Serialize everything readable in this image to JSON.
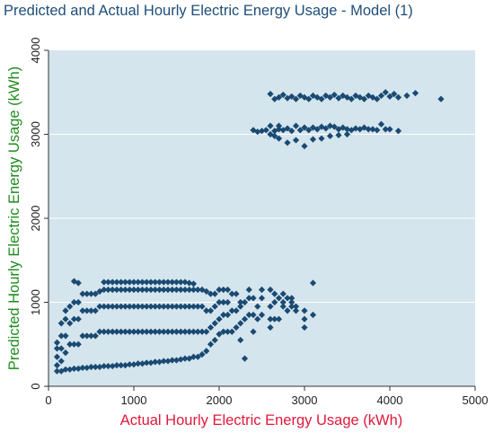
{
  "chart_data": {
    "type": "scatter",
    "title": "Predicted and Actual Hourly Electric Energy Usage - Model (1)",
    "xlabel": "Actual Hourly Electric Energy Usage (kWh)",
    "ylabel": "Predicted Hourly Electric Energy Usage (kWh)",
    "xlim": [
      0,
      5000
    ],
    "ylim": [
      0,
      4000
    ],
    "xticks": [
      0,
      1000,
      2000,
      3000,
      4000,
      5000
    ],
    "yticks": [
      0,
      1000,
      2000,
      3000,
      4000
    ],
    "grid": true,
    "legend": "none",
    "colors": {
      "title": "#1f4e79",
      "xlabel": "#e0183c",
      "ylabel": "#1e8c1e",
      "points": "#1a4a72",
      "plot_background": "#d5e5ee",
      "gridline": "#ffffff"
    },
    "series": [
      {
        "points": [
          [
            100,
            180
          ],
          [
            100,
            250
          ],
          [
            100,
            350
          ],
          [
            100,
            450
          ],
          [
            100,
            520
          ],
          [
            150,
            180
          ],
          [
            150,
            300
          ],
          [
            150,
            450
          ],
          [
            150,
            600
          ],
          [
            150,
            750
          ],
          [
            200,
            200
          ],
          [
            200,
            400
          ],
          [
            200,
            600
          ],
          [
            200,
            800
          ],
          [
            200,
            900
          ],
          [
            250,
            200
          ],
          [
            250,
            500
          ],
          [
            250,
            750
          ],
          [
            250,
            950
          ],
          [
            300,
            210
          ],
          [
            300,
            500
          ],
          [
            300,
            800
          ],
          [
            300,
            1000
          ],
          [
            300,
            1250
          ],
          [
            350,
            210
          ],
          [
            350,
            500
          ],
          [
            350,
            800
          ],
          [
            350,
            1000
          ],
          [
            350,
            1230
          ],
          [
            400,
            220
          ],
          [
            400,
            600
          ],
          [
            400,
            900
          ],
          [
            400,
            1100
          ],
          [
            450,
            220
          ],
          [
            450,
            600
          ],
          [
            450,
            900
          ],
          [
            450,
            1100
          ],
          [
            500,
            230
          ],
          [
            500,
            600
          ],
          [
            500,
            900
          ],
          [
            500,
            1100
          ],
          [
            550,
            230
          ],
          [
            550,
            600
          ],
          [
            550,
            900
          ],
          [
            550,
            1100
          ],
          [
            600,
            230
          ],
          [
            600,
            650
          ],
          [
            600,
            950
          ],
          [
            600,
            1130
          ],
          [
            650,
            240
          ],
          [
            650,
            650
          ],
          [
            650,
            950
          ],
          [
            650,
            1150
          ],
          [
            650,
            1240
          ],
          [
            700,
            240
          ],
          [
            700,
            650
          ],
          [
            700,
            950
          ],
          [
            700,
            1150
          ],
          [
            700,
            1240
          ],
          [
            750,
            240
          ],
          [
            750,
            650
          ],
          [
            750,
            950
          ],
          [
            750,
            1150
          ],
          [
            750,
            1240
          ],
          [
            800,
            250
          ],
          [
            800,
            650
          ],
          [
            800,
            950
          ],
          [
            800,
            1150
          ],
          [
            800,
            1240
          ],
          [
            850,
            250
          ],
          [
            850,
            650
          ],
          [
            850,
            950
          ],
          [
            850,
            1150
          ],
          [
            850,
            1240
          ],
          [
            900,
            250
          ],
          [
            900,
            650
          ],
          [
            900,
            950
          ],
          [
            900,
            1150
          ],
          [
            900,
            1240
          ],
          [
            950,
            260
          ],
          [
            950,
            650
          ],
          [
            950,
            950
          ],
          [
            950,
            1150
          ],
          [
            950,
            1240
          ],
          [
            1000,
            260
          ],
          [
            1000,
            650
          ],
          [
            1000,
            950
          ],
          [
            1000,
            1150
          ],
          [
            1000,
            1240
          ],
          [
            1050,
            270
          ],
          [
            1050,
            650
          ],
          [
            1050,
            950
          ],
          [
            1050,
            1150
          ],
          [
            1050,
            1240
          ],
          [
            1100,
            270
          ],
          [
            1100,
            650
          ],
          [
            1100,
            950
          ],
          [
            1100,
            1150
          ],
          [
            1100,
            1240
          ],
          [
            1150,
            280
          ],
          [
            1150,
            650
          ],
          [
            1150,
            950
          ],
          [
            1150,
            1150
          ],
          [
            1150,
            1240
          ],
          [
            1200,
            280
          ],
          [
            1200,
            650
          ],
          [
            1200,
            950
          ],
          [
            1200,
            1150
          ],
          [
            1200,
            1240
          ],
          [
            1250,
            290
          ],
          [
            1250,
            650
          ],
          [
            1250,
            950
          ],
          [
            1250,
            1150
          ],
          [
            1250,
            1240
          ],
          [
            1300,
            290
          ],
          [
            1300,
            650
          ],
          [
            1300,
            950
          ],
          [
            1300,
            1150
          ],
          [
            1300,
            1240
          ],
          [
            1350,
            300
          ],
          [
            1350,
            650
          ],
          [
            1350,
            950
          ],
          [
            1350,
            1150
          ],
          [
            1350,
            1240
          ],
          [
            1400,
            300
          ],
          [
            1400,
            650
          ],
          [
            1400,
            950
          ],
          [
            1400,
            1150
          ],
          [
            1400,
            1240
          ],
          [
            1450,
            310
          ],
          [
            1450,
            650
          ],
          [
            1450,
            950
          ],
          [
            1450,
            1150
          ],
          [
            1450,
            1240
          ],
          [
            1500,
            310
          ],
          [
            1500,
            650
          ],
          [
            1500,
            950
          ],
          [
            1500,
            1150
          ],
          [
            1500,
            1240
          ],
          [
            1550,
            320
          ],
          [
            1550,
            650
          ],
          [
            1550,
            950
          ],
          [
            1550,
            1150
          ],
          [
            1550,
            1240
          ],
          [
            1600,
            330
          ],
          [
            1600,
            650
          ],
          [
            1600,
            950
          ],
          [
            1600,
            1150
          ],
          [
            1600,
            1240
          ],
          [
            1650,
            330
          ],
          [
            1650,
            650
          ],
          [
            1650,
            950
          ],
          [
            1650,
            1150
          ],
          [
            1650,
            1230
          ],
          [
            1700,
            350
          ],
          [
            1700,
            650
          ],
          [
            1700,
            950
          ],
          [
            1700,
            1150
          ],
          [
            1700,
            1220
          ],
          [
            1750,
            350
          ],
          [
            1750,
            650
          ],
          [
            1750,
            950
          ],
          [
            1750,
            1150
          ],
          [
            1800,
            380
          ],
          [
            1800,
            650
          ],
          [
            1800,
            950
          ],
          [
            1800,
            1150
          ],
          [
            1850,
            420
          ],
          [
            1850,
            650
          ],
          [
            1850,
            900
          ],
          [
            1850,
            1130
          ],
          [
            1900,
            500
          ],
          [
            1900,
            700
          ],
          [
            1900,
            900
          ],
          [
            1900,
            1100
          ],
          [
            1950,
            550
          ],
          [
            1950,
            750
          ],
          [
            1950,
            950
          ],
          [
            1950,
            1100
          ],
          [
            2000,
            620
          ],
          [
            2000,
            800
          ],
          [
            2000,
            1000
          ],
          [
            2000,
            1150
          ],
          [
            2050,
            650
          ],
          [
            2050,
            850
          ],
          [
            2050,
            1000
          ],
          [
            2050,
            1150
          ],
          [
            2100,
            650
          ],
          [
            2100,
            850
          ],
          [
            2100,
            1000
          ],
          [
            2100,
            1150
          ],
          [
            2150,
            650
          ],
          [
            2150,
            900
          ],
          [
            2150,
            1100
          ],
          [
            2200,
            700
          ],
          [
            2200,
            900
          ],
          [
            2200,
            1100
          ],
          [
            2250,
            550
          ],
          [
            2250,
            750
          ],
          [
            2250,
            950
          ],
          [
            2250,
            1000
          ],
          [
            2300,
            330
          ],
          [
            2300,
            800
          ],
          [
            2300,
            1000
          ],
          [
            2350,
            850
          ],
          [
            2350,
            1050
          ],
          [
            2350,
            1150
          ],
          [
            2400,
            650
          ],
          [
            2400,
            850
          ],
          [
            2400,
            1050
          ],
          [
            2450,
            800
          ],
          [
            2450,
            950
          ],
          [
            2500,
            850
          ],
          [
            2500,
            1050
          ],
          [
            2500,
            1150
          ],
          [
            2600,
            700
          ],
          [
            2600,
            800
          ],
          [
            2600,
            950
          ],
          [
            2600,
            1150
          ],
          [
            2650,
            800
          ],
          [
            2650,
            1000
          ],
          [
            2650,
            1100
          ],
          [
            2700,
            800
          ],
          [
            2700,
            1050
          ],
          [
            2750,
            950
          ],
          [
            2750,
            1000
          ],
          [
            2750,
            1100
          ],
          [
            2800,
            900
          ],
          [
            2800,
            1050
          ],
          [
            2850,
            950
          ],
          [
            2850,
            1000
          ],
          [
            2850,
            1050
          ],
          [
            2900,
            900
          ],
          [
            2900,
            950
          ],
          [
            3000,
            700
          ],
          [
            3100,
            1230
          ],
          [
            3000,
            800
          ],
          [
            3000,
            900
          ],
          [
            3100,
            850
          ],
          [
            2400,
            3050
          ],
          [
            2450,
            3030
          ],
          [
            2500,
            3040
          ],
          [
            2550,
            3050
          ],
          [
            2600,
            3000
          ],
          [
            2600,
            3100
          ],
          [
            2650,
            3040
          ],
          [
            2700,
            3060
          ],
          [
            2700,
            3100
          ],
          [
            2750,
            3050
          ],
          [
            2800,
            3070
          ],
          [
            2850,
            3040
          ],
          [
            2900,
            3100
          ],
          [
            2950,
            3050
          ],
          [
            3000,
            3080
          ],
          [
            3050,
            3050
          ],
          [
            3100,
            3080
          ],
          [
            3150,
            3060
          ],
          [
            3200,
            3090
          ],
          [
            3250,
            3070
          ],
          [
            3300,
            3100
          ],
          [
            3350,
            3090
          ],
          [
            3400,
            3060
          ],
          [
            3450,
            3080
          ],
          [
            3500,
            3060
          ],
          [
            3550,
            3050
          ],
          [
            3600,
            3070
          ],
          [
            3650,
            3060
          ],
          [
            3700,
            3080
          ],
          [
            3750,
            3060
          ],
          [
            3800,
            3060
          ],
          [
            3850,
            3050
          ],
          [
            3900,
            3120
          ],
          [
            3950,
            3060
          ],
          [
            4000,
            3060
          ],
          [
            4100,
            3040
          ],
          [
            2700,
            2950
          ],
          [
            2800,
            2900
          ],
          [
            2900,
            2930
          ],
          [
            3000,
            2860
          ],
          [
            3100,
            2940
          ],
          [
            3200,
            2950
          ],
          [
            3300,
            2980
          ],
          [
            3400,
            2990
          ],
          [
            2650,
            2980
          ],
          [
            3500,
            3000
          ],
          [
            2600,
            3480
          ],
          [
            2650,
            3420
          ],
          [
            2700,
            3440
          ],
          [
            2750,
            3470
          ],
          [
            2800,
            3430
          ],
          [
            2850,
            3450
          ],
          [
            2900,
            3420
          ],
          [
            2950,
            3460
          ],
          [
            3000,
            3440
          ],
          [
            3050,
            3420
          ],
          [
            3100,
            3460
          ],
          [
            3150,
            3440
          ],
          [
            3200,
            3420
          ],
          [
            3250,
            3460
          ],
          [
            3300,
            3440
          ],
          [
            3350,
            3470
          ],
          [
            3400,
            3430
          ],
          [
            3450,
            3460
          ],
          [
            3500,
            3440
          ],
          [
            3550,
            3420
          ],
          [
            3600,
            3460
          ],
          [
            3650,
            3440
          ],
          [
            3700,
            3420
          ],
          [
            3750,
            3460
          ],
          [
            3800,
            3440
          ],
          [
            3850,
            3420
          ],
          [
            3900,
            3460
          ],
          [
            3950,
            3500
          ],
          [
            4000,
            3450
          ],
          [
            4050,
            3480
          ],
          [
            4100,
            3440
          ],
          [
            4200,
            3460
          ],
          [
            4300,
            3490
          ],
          [
            4600,
            3420
          ]
        ]
      }
    ]
  }
}
